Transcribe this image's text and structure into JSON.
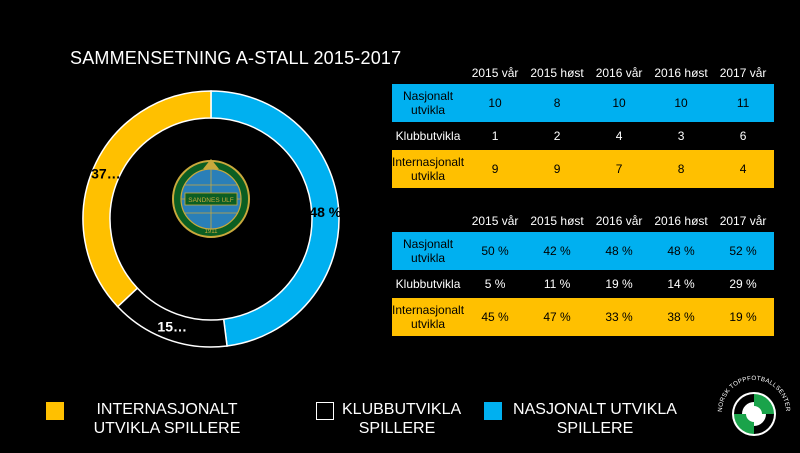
{
  "title": "SAMMENSETNING A-STALL 2015-2017",
  "chart_data": [
    {
      "type": "pie",
      "variant": "donut",
      "slices": [
        {
          "label": "NASJONALT UTVIKLA SPILLERE",
          "value": 48,
          "display": "48 %",
          "color": "#00b0f0"
        },
        {
          "label": "KLUBBUTVIKLA SPILLERE",
          "value": 15,
          "display": "15…",
          "color": "#000000"
        },
        {
          "label": "INTERNASJONALT UTVIKLA SPILLERE",
          "value": 37,
          "display": "37…",
          "color": "#ffc000"
        }
      ],
      "legend_position": "bottom"
    },
    {
      "type": "table",
      "columns": [
        "2015 vår",
        "2015 høst",
        "2016 vår",
        "2016 høst",
        "2017 vår"
      ],
      "rows": [
        {
          "label": "Nasjonalt utvikla",
          "values": [
            "10",
            "8",
            "10",
            "10",
            "11"
          ],
          "color": "#00b0f0"
        },
        {
          "label": "Klubbutvikla",
          "values": [
            "1",
            "2",
            "4",
            "3",
            "6"
          ],
          "color": "#000000"
        },
        {
          "label": "Internasjonalt utvikla",
          "values": [
            "9",
            "9",
            "7",
            "8",
            "4"
          ],
          "color": "#ffc000"
        }
      ]
    },
    {
      "type": "table",
      "columns": [
        "2015 vår",
        "2015 høst",
        "2016 vår",
        "2016 høst",
        "2017 vår"
      ],
      "rows": [
        {
          "label": "Nasjonalt utvikla",
          "values": [
            "50 %",
            "42 %",
            "48 %",
            "48 %",
            "52 %"
          ],
          "color": "#00b0f0"
        },
        {
          "label": "Klubbutvikla",
          "values": [
            "5 %",
            "11 %",
            "19 %",
            "14 %",
            "29 %"
          ],
          "color": "#000000"
        },
        {
          "label": "Internasjonalt utvikla",
          "values": [
            "45 %",
            "47 %",
            "33 %",
            "38 %",
            "19 %"
          ],
          "color": "#ffc000"
        }
      ]
    }
  ],
  "legend": [
    {
      "label": "INTERNASJONALT UTVIKLA SPILLERE",
      "color": "#ffc000"
    },
    {
      "label": "KLUBBUTVIKLA SPILLERE",
      "color": "#000000"
    },
    {
      "label": "NASJONALT UTVIKLA SPILLERE",
      "color": "#00b0f0"
    }
  ],
  "club_logo": {
    "text_top": "SANDNES ULF",
    "text_bottom": "1911"
  },
  "footer_logo": {
    "text": "NORSK TOPPFOTBALLSENTER"
  }
}
